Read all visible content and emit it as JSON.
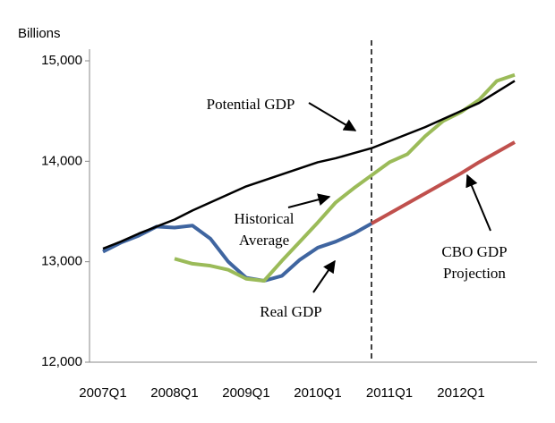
{
  "chart_data": {
    "type": "line",
    "y_axis_label": "Billions",
    "categories": [
      "2007Q1",
      null,
      null,
      null,
      "2008Q1",
      null,
      null,
      null,
      "2009Q1",
      null,
      null,
      null,
      "2010Q1",
      null,
      null,
      null,
      "2011Q1",
      null,
      null,
      null,
      "2012Q1",
      null,
      null,
      null
    ],
    "ylim": [
      12000,
      15000
    ],
    "yticks": [
      {
        "value": 12000,
        "label": "12,000"
      },
      {
        "value": 13000,
        "label": "13,000"
      },
      {
        "value": 14000,
        "label": "14,000"
      },
      {
        "value": 15000,
        "label": "15,000"
      }
    ],
    "grid": false,
    "series": [
      {
        "name": "Real GDP",
        "color": "#3f65a0",
        "values": [
          13100,
          13190,
          13260,
          13350,
          13340,
          13360,
          13230,
          13000,
          12840,
          12810,
          12860,
          13020,
          13140,
          13200,
          13280,
          13380,
          null,
          null,
          null,
          null,
          null,
          null,
          null,
          null
        ]
      },
      {
        "name": "Historical Average",
        "color": "#9bbb59",
        "values": [
          null,
          null,
          null,
          null,
          13030,
          12980,
          12960,
          12920,
          12830,
          12810,
          13010,
          13200,
          13390,
          13590,
          13730,
          13860,
          13990,
          14070,
          14250,
          14400,
          14490,
          14610,
          14800,
          14860
        ]
      },
      {
        "name": "Potential GDP",
        "color": "#000000",
        "values": [
          13130,
          13200,
          13280,
          13350,
          13420,
          13510,
          13590,
          13670,
          13750,
          13810,
          13870,
          13930,
          13990,
          14030,
          14080,
          14130,
          14200,
          14270,
          14340,
          14420,
          14500,
          14580,
          14690,
          14800
        ]
      },
      {
        "name": "CBO GDP Projection",
        "color": "#c0504d",
        "values": [
          null,
          null,
          null,
          null,
          null,
          null,
          null,
          null,
          null,
          null,
          null,
          null,
          null,
          null,
          null,
          13380,
          13480,
          13580,
          13680,
          13780,
          13880,
          13990,
          14090,
          14190
        ]
      }
    ],
    "annotations": [
      [
        "Potential GDP"
      ],
      [
        "Historical",
        "Average"
      ],
      [
        "Real GDP"
      ],
      [
        "CBO GDP",
        "Projection"
      ]
    ]
  }
}
